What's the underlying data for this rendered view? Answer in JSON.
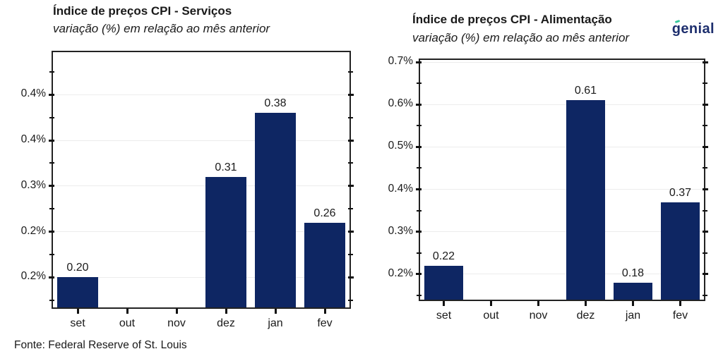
{
  "page": {
    "background": "#ffffff",
    "source_note": "Fonte: Federal Reserve of St. Louis",
    "logo": {
      "text": "genial",
      "color": "#1e2f6e",
      "accent_color": "#36c79c"
    }
  },
  "style": {
    "bar_color": "#0e2663",
    "frame_color": "#222222",
    "gridline_color": "#ececec",
    "text_color": "#1a1a1a"
  },
  "chart_data": [
    {
      "type": "bar",
      "title": "Índice de preços CPI - Serviços",
      "subtitle": "variação (%) em relação ao mês anterior",
      "categories": [
        "set",
        "out",
        "nov",
        "dez",
        "jan",
        "fev"
      ],
      "values": [
        0.2,
        0.0,
        0.0,
        0.31,
        0.38,
        0.26
      ],
      "bar_labels": [
        "0.20",
        "",
        "",
        "0.31",
        "0.38",
        "0.26"
      ],
      "unit": "%",
      "bar_color": "#0e2663",
      "grid": true,
      "legend": false,
      "y_axis": {
        "min": 0.167,
        "max": 0.4466,
        "major_ticks": [
          {
            "value": 0.4,
            "label": "0.4%"
          },
          {
            "value": 0.35,
            "label": "0.4%"
          },
          {
            "value": 0.3,
            "label": "0.3%"
          },
          {
            "value": 0.25,
            "label": "0.2%"
          },
          {
            "value": 0.2,
            "label": "0.2%"
          }
        ],
        "minor_ticks": [
          0.425,
          0.375,
          0.325,
          0.275,
          0.225,
          0.175
        ]
      }
    },
    {
      "type": "bar",
      "title": "Índice de preços CPI - Alimentação",
      "subtitle": "variação (%) em relação ao mês anterior",
      "categories": [
        "set",
        "out",
        "nov",
        "dez",
        "jan",
        "fev"
      ],
      "values": [
        0.22,
        0.0,
        0.0,
        0.61,
        0.18,
        0.37
      ],
      "bar_labels": [
        "0.22",
        "",
        "",
        "0.61",
        "0.18",
        "0.37"
      ],
      "unit": "%",
      "bar_color": "#0e2663",
      "grid": true,
      "legend": false,
      "y_axis": {
        "min": 0.14,
        "max": 0.705,
        "major_ticks": [
          {
            "value": 0.7,
            "label": "0.7%"
          },
          {
            "value": 0.6,
            "label": "0.6%"
          },
          {
            "value": 0.5,
            "label": "0.5%"
          },
          {
            "value": 0.4,
            "label": "0.4%"
          },
          {
            "value": 0.3,
            "label": "0.3%"
          },
          {
            "value": 0.2,
            "label": "0.2%"
          }
        ],
        "minor_ticks": [
          0.65,
          0.55,
          0.45,
          0.35,
          0.25,
          0.15
        ]
      }
    }
  ]
}
